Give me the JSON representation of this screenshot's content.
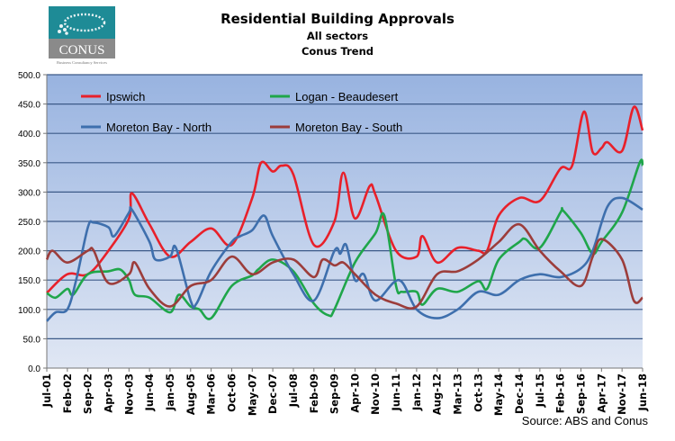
{
  "logo": {
    "text": "CONUS",
    "tagline": "Business Consultancy Services",
    "colors": {
      "top": "#1e8b96",
      "bottom": "#8a8a8a"
    }
  },
  "source": "Source: ABS and Conus",
  "chart_data": {
    "type": "line",
    "title": "Residential Building Approvals",
    "subtitle": [
      "All sectors",
      "Conus Trend"
    ],
    "xlabel": "",
    "ylabel": "",
    "ylim": [
      0,
      500
    ],
    "yticks": [
      "0.0",
      "50.0",
      "100.0",
      "150.0",
      "200.0",
      "250.0",
      "300.0",
      "350.0",
      "400.0",
      "450.0",
      "500.0"
    ],
    "xticks": [
      "Jul-01",
      "Feb-02",
      "Sep-02",
      "Apr-03",
      "Nov-03",
      "Jun-04",
      "Jan-05",
      "Aug-05",
      "Mar-06",
      "Oct-06",
      "May-07",
      "Dec-07",
      "Jul-08",
      "Feb-09",
      "Sep-09",
      "Apr-10",
      "Nov-10",
      "Jun-11",
      "Jan-12",
      "Aug-12",
      "Mar-13",
      "Oct-13",
      "May-14",
      "Dec-14",
      "Jul-15",
      "Feb-16",
      "Sep-16",
      "Apr-17",
      "Nov-17",
      "Jun-18"
    ],
    "xlim": [
      "2001-07",
      "2018-06"
    ],
    "grid": true,
    "legend": "top-left inside",
    "series": [
      {
        "name": "Ipswich",
        "color": "#e8202a",
        "points": [
          [
            "2001-07",
            128
          ],
          [
            "2002-02",
            160
          ],
          [
            "2002-09",
            160
          ],
          [
            "2003-04",
            200
          ],
          [
            "2003-11",
            255
          ],
          [
            "2003-12",
            298
          ],
          [
            "2004-06",
            245
          ],
          [
            "2005-01",
            190
          ],
          [
            "2005-08",
            215
          ],
          [
            "2006-03",
            238
          ],
          [
            "2006-10",
            210
          ],
          [
            "2007-05",
            290
          ],
          [
            "2007-08",
            350
          ],
          [
            "2007-12",
            335
          ],
          [
            "2008-03",
            345
          ],
          [
            "2008-07",
            330
          ],
          [
            "2009-02",
            210
          ],
          [
            "2009-09",
            250
          ],
          [
            "2009-12",
            333
          ],
          [
            "2010-04",
            255
          ],
          [
            "2010-09",
            310
          ],
          [
            "2010-11",
            295
          ],
          [
            "2011-06",
            200
          ],
          [
            "2012-01",
            190
          ],
          [
            "2012-03",
            225
          ],
          [
            "2012-08",
            180
          ],
          [
            "2013-03",
            205
          ],
          [
            "2013-10",
            200
          ],
          [
            "2014-01",
            200
          ],
          [
            "2014-05",
            260
          ],
          [
            "2014-12",
            290
          ],
          [
            "2015-07",
            285
          ],
          [
            "2016-02",
            340
          ],
          [
            "2016-06",
            345
          ],
          [
            "2016-10",
            437
          ],
          [
            "2017-01",
            368
          ],
          [
            "2017-04",
            375
          ],
          [
            "2017-06",
            385
          ],
          [
            "2017-11",
            370
          ],
          [
            "2018-03",
            445
          ],
          [
            "2018-06",
            405
          ]
        ]
      },
      {
        "name": "Logan - Beaudesert",
        "color": "#1fa64a",
        "points": [
          [
            "2001-07",
            128
          ],
          [
            "2001-10",
            120
          ],
          [
            "2002-02",
            135
          ],
          [
            "2002-04",
            125
          ],
          [
            "2002-09",
            160
          ],
          [
            "2003-04",
            165
          ],
          [
            "2003-08",
            168
          ],
          [
            "2003-11",
            150
          ],
          [
            "2004-01",
            125
          ],
          [
            "2004-06",
            120
          ],
          [
            "2005-01",
            95
          ],
          [
            "2005-04",
            125
          ],
          [
            "2005-08",
            105
          ],
          [
            "2005-11",
            100
          ],
          [
            "2006-03",
            85
          ],
          [
            "2006-10",
            140
          ],
          [
            "2007-05",
            158
          ],
          [
            "2007-07",
            168
          ],
          [
            "2007-12",
            185
          ],
          [
            "2008-07",
            165
          ],
          [
            "2009-02",
            110
          ],
          [
            "2009-07",
            90
          ],
          [
            "2009-09",
            100
          ],
          [
            "2010-04",
            180
          ],
          [
            "2010-11",
            230
          ],
          [
            "2011-02",
            260
          ],
          [
            "2011-06",
            140
          ],
          [
            "2011-08",
            130
          ],
          [
            "2012-01",
            130
          ],
          [
            "2012-03",
            108
          ],
          [
            "2012-08",
            135
          ],
          [
            "2013-03",
            130
          ],
          [
            "2013-10",
            148
          ],
          [
            "2014-01",
            135
          ],
          [
            "2014-05",
            185
          ],
          [
            "2014-12",
            215
          ],
          [
            "2015-02",
            220
          ],
          [
            "2015-07",
            205
          ],
          [
            "2016-02",
            265
          ],
          [
            "2016-03",
            268
          ],
          [
            "2016-09",
            230
          ],
          [
            "2017-01",
            195
          ],
          [
            "2017-04",
            215
          ],
          [
            "2017-11",
            265
          ],
          [
            "2018-05",
            350
          ],
          [
            "2018-06",
            345
          ]
        ]
      },
      {
        "name": "Moreton Bay - North",
        "color": "#3e6fad",
        "points": [
          [
            "2001-07",
            80
          ],
          [
            "2001-10",
            95
          ],
          [
            "2002-02",
            100
          ],
          [
            "2002-05",
            150
          ],
          [
            "2002-09",
            240
          ],
          [
            "2002-11",
            248
          ],
          [
            "2003-04",
            240
          ],
          [
            "2003-06",
            225
          ],
          [
            "2003-11",
            265
          ],
          [
            "2003-12",
            270
          ],
          [
            "2004-06",
            215
          ],
          [
            "2004-08",
            185
          ],
          [
            "2005-01",
            190
          ],
          [
            "2005-03",
            205
          ],
          [
            "2005-08",
            115
          ],
          [
            "2005-10",
            110
          ],
          [
            "2006-03",
            165
          ],
          [
            "2006-10",
            215
          ],
          [
            "2007-01",
            225
          ],
          [
            "2007-05",
            235
          ],
          [
            "2007-09",
            260
          ],
          [
            "2007-12",
            225
          ],
          [
            "2008-07",
            160
          ],
          [
            "2009-02",
            115
          ],
          [
            "2009-09",
            200
          ],
          [
            "2009-11",
            195
          ],
          [
            "2010-01",
            210
          ],
          [
            "2010-04",
            150
          ],
          [
            "2010-07",
            160
          ],
          [
            "2010-11",
            115
          ],
          [
            "2011-07",
            150
          ],
          [
            "2012-01",
            100
          ],
          [
            "2012-08",
            85
          ],
          [
            "2013-03",
            100
          ],
          [
            "2013-10",
            130
          ],
          [
            "2014-05",
            125
          ],
          [
            "2014-12",
            150
          ],
          [
            "2015-07",
            160
          ],
          [
            "2016-02",
            155
          ],
          [
            "2016-09",
            170
          ],
          [
            "2017-01",
            200
          ],
          [
            "2017-06",
            275
          ],
          [
            "2017-11",
            290
          ],
          [
            "2018-06",
            270
          ]
        ]
      },
      {
        "name": "Moreton Bay - South",
        "color": "#9c3d3b",
        "points": [
          [
            "2001-07",
            185
          ],
          [
            "2001-09",
            200
          ],
          [
            "2002-02",
            180
          ],
          [
            "2002-09",
            200
          ],
          [
            "2002-11",
            200
          ],
          [
            "2003-04",
            145
          ],
          [
            "2003-11",
            160
          ],
          [
            "2004-01",
            180
          ],
          [
            "2004-06",
            135
          ],
          [
            "2005-01",
            105
          ],
          [
            "2005-08",
            140
          ],
          [
            "2006-03",
            150
          ],
          [
            "2006-10",
            190
          ],
          [
            "2007-05",
            160
          ],
          [
            "2007-12",
            180
          ],
          [
            "2008-07",
            185
          ],
          [
            "2009-02",
            155
          ],
          [
            "2009-05",
            185
          ],
          [
            "2009-09",
            175
          ],
          [
            "2009-12",
            180
          ],
          [
            "2010-04",
            160
          ],
          [
            "2010-11",
            125
          ],
          [
            "2011-06",
            110
          ],
          [
            "2012-01",
            105
          ],
          [
            "2012-08",
            160
          ],
          [
            "2013-03",
            165
          ],
          [
            "2013-10",
            185
          ],
          [
            "2014-05",
            215
          ],
          [
            "2014-12",
            245
          ],
          [
            "2015-07",
            200
          ],
          [
            "2016-02",
            165
          ],
          [
            "2016-09",
            140
          ],
          [
            "2017-01",
            190
          ],
          [
            "2017-04",
            220
          ],
          [
            "2017-11",
            185
          ],
          [
            "2018-03",
            115
          ],
          [
            "2018-06",
            120
          ]
        ]
      }
    ]
  }
}
